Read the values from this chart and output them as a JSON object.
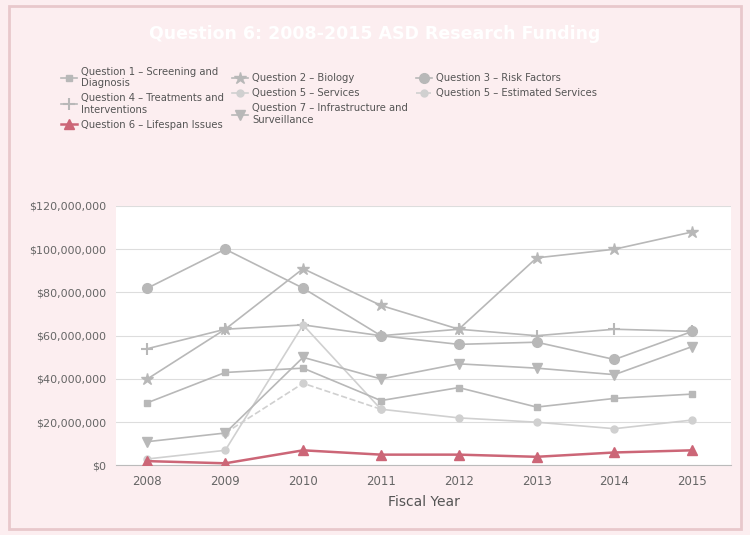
{
  "title": "Question 6: 2008-2015 ASD Research Funding",
  "xlabel": "Fiscal Year",
  "years": [
    2008,
    2009,
    2010,
    2011,
    2012,
    2013,
    2014,
    2015
  ],
  "series": {
    "Q1_Screening": [
      29000000,
      43000000,
      45000000,
      30000000,
      36000000,
      27000000,
      31000000,
      33000000
    ],
    "Q2_Biology": [
      40000000,
      63000000,
      91000000,
      74000000,
      63000000,
      96000000,
      100000000,
      108000000
    ],
    "Q3_RiskFactors": [
      82000000,
      100000000,
      82000000,
      60000000,
      56000000,
      57000000,
      49000000,
      62000000
    ],
    "Q4_Treatments": [
      54000000,
      63000000,
      65000000,
      60000000,
      63000000,
      60000000,
      63000000,
      62000000
    ],
    "Q5_Services": [
      3000000,
      7000000,
      65000000,
      26000000,
      22000000,
      20000000,
      17000000,
      21000000
    ],
    "Q5_EstServices": [
      null,
      15000000,
      38000000,
      26000000,
      null,
      null,
      null,
      null
    ],
    "Q6_Lifespan": [
      2000000,
      1000000,
      7000000,
      5000000,
      5000000,
      4000000,
      6000000,
      7000000
    ],
    "Q7_Infrastructure": [
      11000000,
      15000000,
      50000000,
      40000000,
      47000000,
      45000000,
      42000000,
      55000000
    ]
  },
  "colors": {
    "gray": "#b8b8b8",
    "pink": "#cc6677",
    "light_gray": "#d0d0d0"
  },
  "title_bg": "#c87080",
  "title_color": "#ffffff",
  "background_outer": "#fceef0",
  "background_inner": "#ffffff",
  "border_color": "#e8c8cc",
  "ylim": [
    0,
    120000000
  ],
  "yticks": [
    0,
    20000000,
    40000000,
    60000000,
    80000000,
    100000000,
    120000000
  ]
}
